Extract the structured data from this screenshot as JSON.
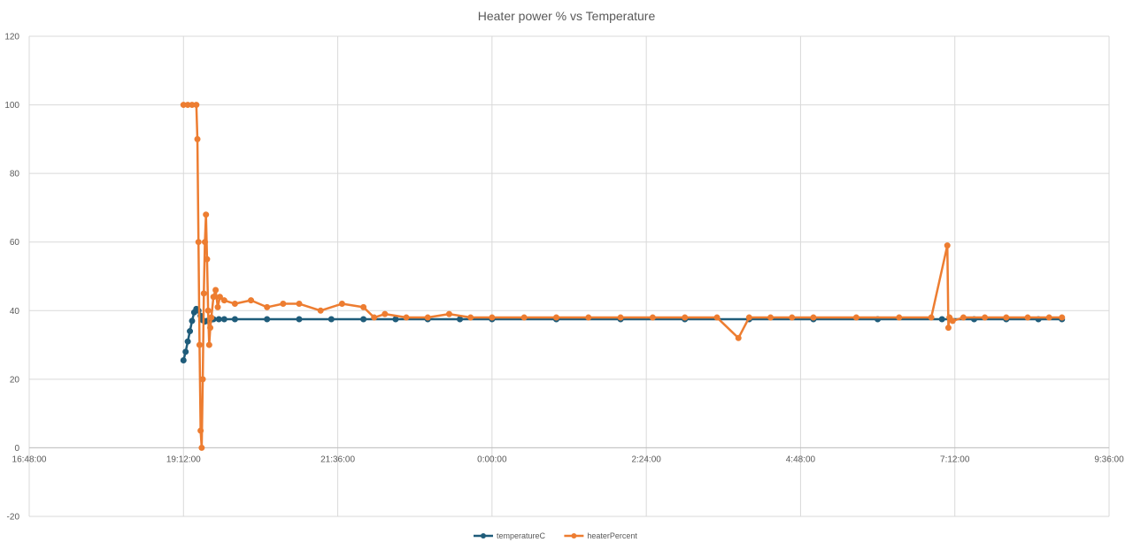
{
  "chart_data": {
    "type": "line",
    "title": "Heater power % vs Temperature",
    "xlabel": "",
    "ylabel": "",
    "ylim": [
      -20,
      120
    ],
    "yticks": [
      "-20",
      "0",
      "20",
      "40",
      "60",
      "80",
      "100",
      "120"
    ],
    "x_axis_type": "time",
    "xlim": [
      "16:48:00",
      "9:36:00 (+1 day)"
    ],
    "xticks": [
      "16:48:00",
      "19:12:00",
      "21:36:00",
      "0:00:00",
      "2:24:00",
      "4:48:00",
      "7:12:00",
      "9:36:00"
    ],
    "grid": true,
    "legend_position": "bottom",
    "series": [
      {
        "name": "temperatureC",
        "color": "#1f5c7a",
        "marker": "circle",
        "x": [
          "19:12:00",
          "19:14:00",
          "19:16:00",
          "19:18:00",
          "19:20:00",
          "19:22:00",
          "19:24:00",
          "19:26:00",
          "19:28:00",
          "19:30:00",
          "19:32:00",
          "19:34:00",
          "19:36:00",
          "19:38:00",
          "19:40:00",
          "19:45:00",
          "19:50:00",
          "20:00:00",
          "20:30:00",
          "21:00:00",
          "21:30:00",
          "22:00:00",
          "22:30:00",
          "23:00:00",
          "23:30:00",
          "0:00:00",
          "1:00:00",
          "2:00:00",
          "3:00:00",
          "4:00:00",
          "5:00:00",
          "6:00:00",
          "7:00:00",
          "7:30:00",
          "8:00:00",
          "8:30:00",
          "8:52:00"
        ],
        "values": [
          25.5,
          28,
          31,
          34,
          37,
          39.5,
          40.5,
          40,
          38.5,
          37.2,
          36.8,
          37,
          37.2,
          37.4,
          37.5,
          37.5,
          37.5,
          37.5,
          37.5,
          37.5,
          37.5,
          37.5,
          37.5,
          37.5,
          37.5,
          37.5,
          37.5,
          37.5,
          37.5,
          37.5,
          37.5,
          37.5,
          37.5,
          37.5,
          37.5,
          37.5,
          37.5
        ]
      },
      {
        "name": "heaterPercent",
        "color": "#ed7d31",
        "marker": "circle",
        "x": [
          "19:12:00",
          "19:16:00",
          "19:20:00",
          "19:24:00",
          "19:25:00",
          "19:26:00",
          "19:27:00",
          "19:28:00",
          "19:29:00",
          "19:30:00",
          "19:31:00",
          "19:32:00",
          "19:33:00",
          "19:34:00",
          "19:35:00",
          "19:36:00",
          "19:37:00",
          "19:38:00",
          "19:40:00",
          "19:42:00",
          "19:44:00",
          "19:46:00",
          "19:50:00",
          "20:00:00",
          "20:15:00",
          "20:30:00",
          "20:45:00",
          "21:00:00",
          "21:20:00",
          "21:40:00",
          "22:00:00",
          "22:10:00",
          "22:20:00",
          "22:40:00",
          "23:00:00",
          "23:20:00",
          "23:40:00",
          "0:00:00",
          "0:30:00",
          "1:00:00",
          "1:30:00",
          "2:00:00",
          "2:30:00",
          "3:00:00",
          "3:30:00",
          "3:50:00",
          "4:00:00",
          "4:20:00",
          "4:40:00",
          "5:00:00",
          "5:40:00",
          "6:20:00",
          "6:50:00",
          "7:05:00",
          "7:06:00",
          "7:07:00",
          "7:10:00",
          "7:20:00",
          "7:40:00",
          "8:00:00",
          "8:20:00",
          "8:40:00",
          "8:52:00"
        ],
        "values": [
          100,
          100,
          100,
          100,
          90,
          60,
          30,
          5,
          0,
          20,
          45,
          60,
          68,
          55,
          40,
          30,
          35,
          38,
          44,
          46,
          41,
          44,
          43,
          42,
          43,
          41,
          42,
          42,
          40,
          42,
          41,
          38,
          39,
          38,
          38,
          39,
          38,
          38,
          38,
          38,
          38,
          38,
          38,
          38,
          38,
          32,
          38,
          38,
          38,
          38,
          38,
          38,
          38,
          59,
          35,
          38,
          37,
          38,
          38,
          38,
          38,
          38,
          38
        ]
      }
    ]
  }
}
